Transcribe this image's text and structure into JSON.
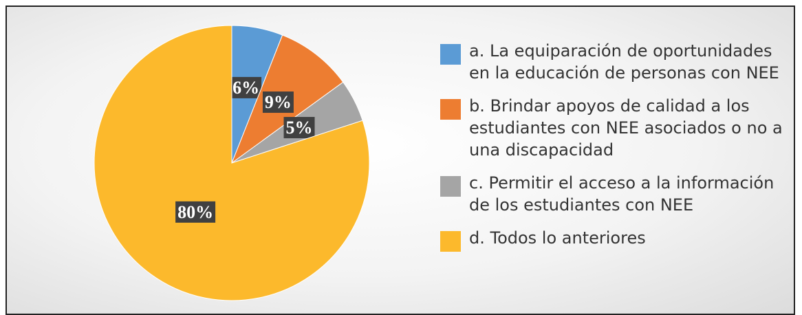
{
  "chart_data": {
    "type": "pie",
    "categories": [
      "a. La equiparación de oportunidades en la educación de personas con NEE",
      "b. Brindar apoyos de calidad a los estudiantes con NEE asociados o no a una discapacidad",
      "c. Permitir el acceso a la información de los estudiantes con NEE",
      "d. Todos lo anteriores"
    ],
    "values": [
      6,
      9,
      5,
      80
    ],
    "value_labels": [
      "6%",
      "9%",
      "5%",
      "80%"
    ],
    "colors": [
      "#5b9bd5",
      "#ed7d31",
      "#a5a5a5",
      "#fcb92c"
    ],
    "legend": "right"
  }
}
